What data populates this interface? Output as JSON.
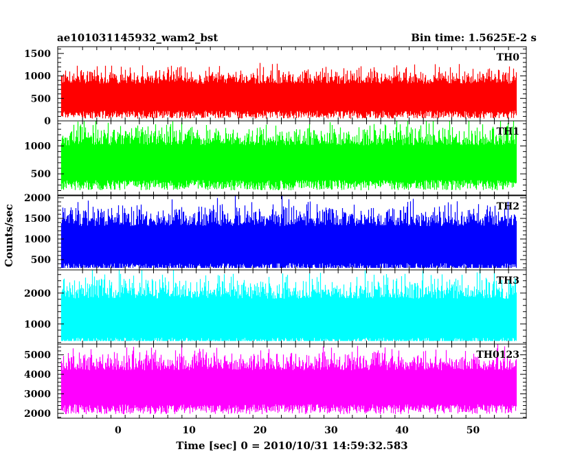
{
  "header": {
    "left": "ae101031145932_wam2_bst",
    "right": "Bin time: 1.5625E-2 s"
  },
  "chart_data": {
    "type": "line",
    "xlabel": "Time [sec] 0 = 2010/10/31 14:59:32.583",
    "ylabel": "Counts/sec",
    "xlim": [
      -8.5,
      57.5
    ],
    "x_range_data": [
      -8,
      56
    ],
    "bin_time_s": 0.015625,
    "x_ticks": [
      0,
      10,
      20,
      30,
      40,
      50
    ],
    "panels": [
      {
        "name": "TH0",
        "color": "#ff0000",
        "ylim": [
          0,
          1650
        ],
        "ticks": [
          0,
          500,
          1000,
          1500
        ],
        "base": 650,
        "spread": 500,
        "lowfloor": 0
      },
      {
        "name": "TH1",
        "color": "#00ff00",
        "ylim": [
          120,
          1450
        ],
        "ticks": [
          500,
          1000
        ],
        "base": 830,
        "spread": 520,
        "lowfloor": 180
      },
      {
        "name": "TH2",
        "color": "#0000ff",
        "ylim": [
          250,
          2050
        ],
        "ticks": [
          500,
          1000,
          1500,
          2000
        ],
        "base": 1050,
        "spread": 750,
        "lowfloor": 300
      },
      {
        "name": "TH3",
        "color": "#00ffff",
        "ylim": [
          350,
          2750
        ],
        "ticks": [
          1000,
          2000
        ],
        "base": 1450,
        "spread": 1050,
        "lowfloor": 450
      },
      {
        "name": "TH0123",
        "color": "#ff00ff",
        "ylim": [
          1750,
          5550
        ],
        "ticks": [
          2000,
          3000,
          4000,
          5000
        ],
        "base": 3700,
        "spread": 1450,
        "lowfloor": 1800
      }
    ]
  }
}
